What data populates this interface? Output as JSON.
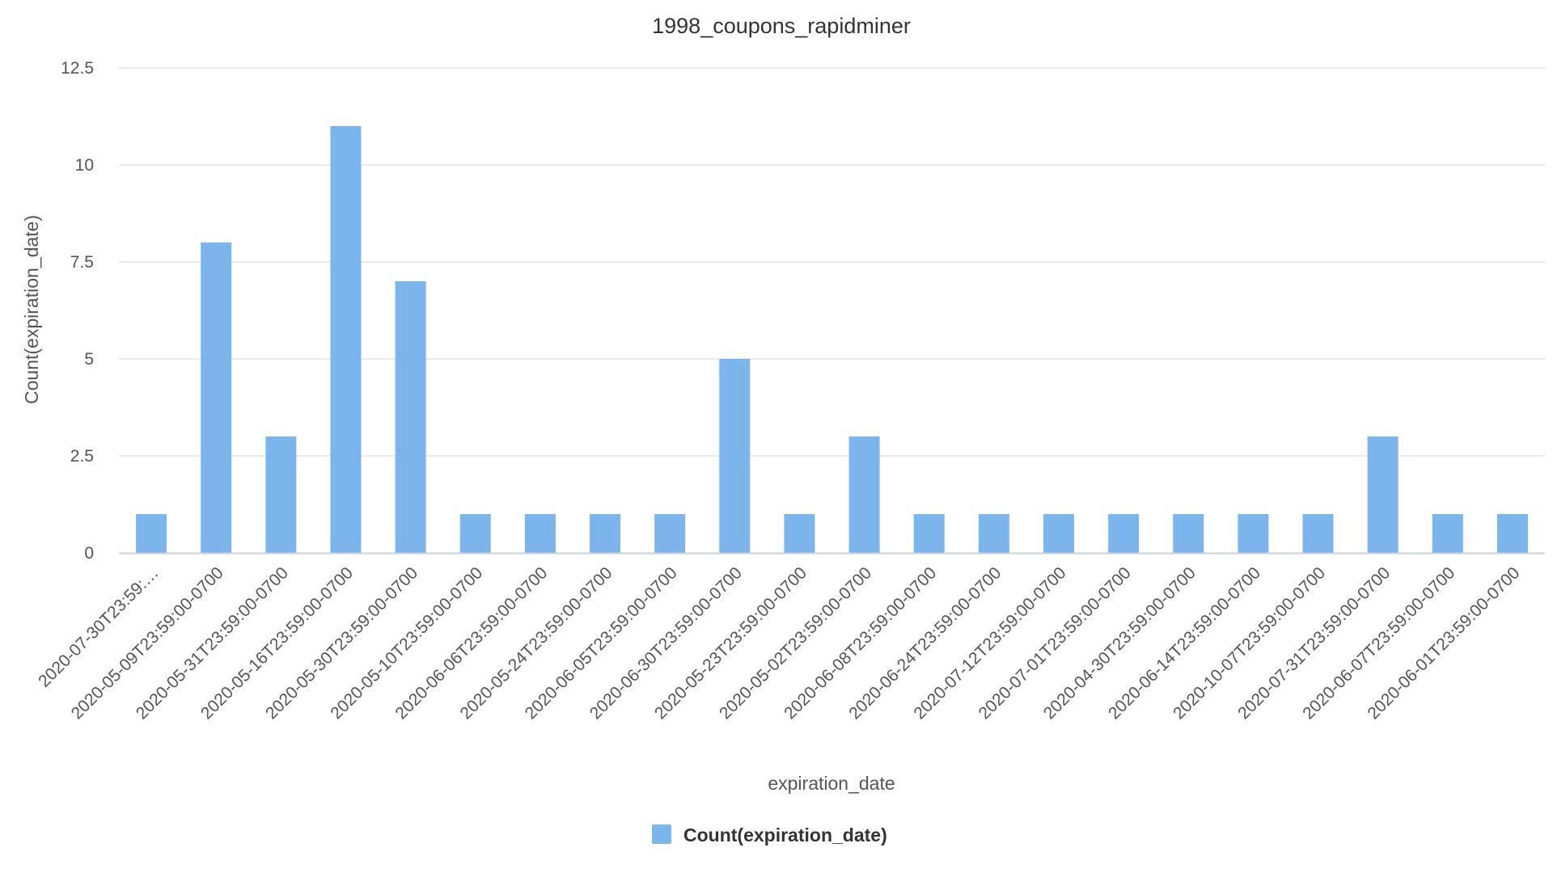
{
  "chart_data": {
    "type": "bar",
    "title": "1998_coupons_rapidminer",
    "xlabel": "expiration_date",
    "ylabel": "Count(expiration_date)",
    "ylim": [
      0,
      12.5
    ],
    "yticks": [
      "0",
      "2.5",
      "5",
      "7.5",
      "10",
      "12.5"
    ],
    "grid": true,
    "legend": "bottom-center",
    "bar_color": "#7cb5ec",
    "categories": [
      "2020-07-30T23:59:…",
      "2020-05-09T23:59:00-0700",
      "2020-05-31T23:59:00-0700",
      "2020-05-16T23:59:00-0700",
      "2020-05-30T23:59:00-0700",
      "2020-05-10T23:59:00-0700",
      "2020-06-06T23:59:00-0700",
      "2020-05-24T23:59:00-0700",
      "2020-06-05T23:59:00-0700",
      "2020-06-30T23:59:00-0700",
      "2020-05-23T23:59:00-0700",
      "2020-05-02T23:59:00-0700",
      "2020-06-08T23:59:00-0700",
      "2020-06-24T23:59:00-0700",
      "2020-07-12T23:59:00-0700",
      "2020-07-01T23:59:00-0700",
      "2020-04-30T23:59:00-0700",
      "2020-06-14T23:59:00-0700",
      "2020-10-07T23:59:00-0700",
      "2020-07-31T23:59:00-0700",
      "2020-06-07T23:59:00-0700",
      "2020-06-01T23:59:00-0700"
    ],
    "series": [
      {
        "name": "Count(expiration_date)",
        "values": [
          1,
          8,
          3,
          11,
          7,
          1,
          1,
          1,
          1,
          5,
          1,
          3,
          1,
          1,
          1,
          1,
          1,
          1,
          1,
          3,
          1,
          1
        ]
      }
    ]
  }
}
